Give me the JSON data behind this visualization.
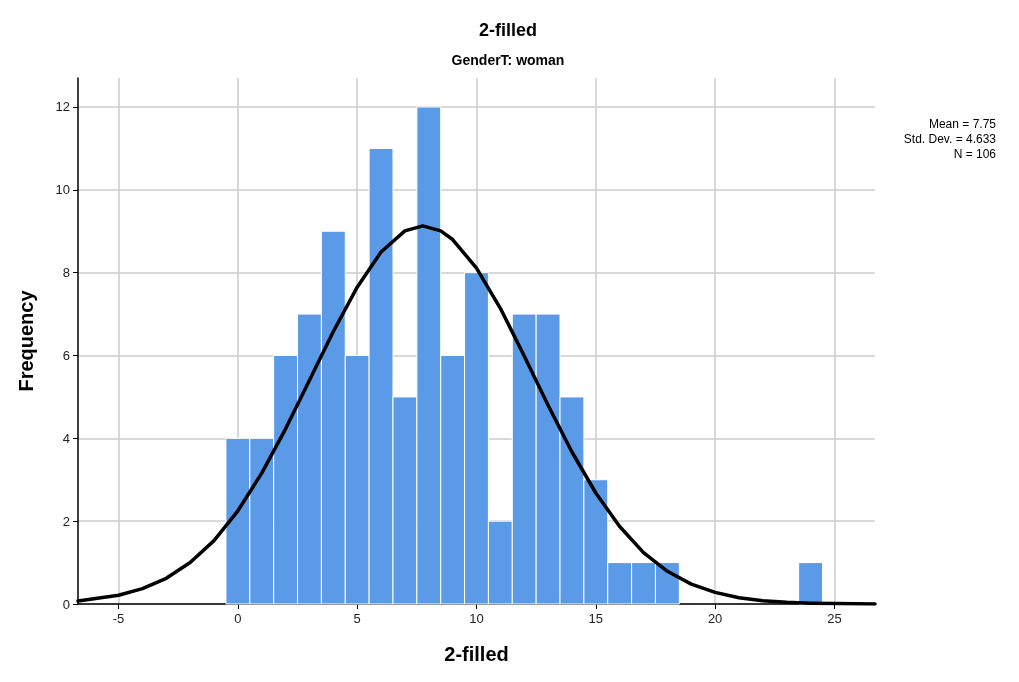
{
  "chart_data": {
    "type": "histogram",
    "title": "2-filled",
    "subtitle": "GenderT: woman",
    "xlabel": "2-filled",
    "ylabel": "Frequency",
    "bins": [
      -0.5,
      0.5,
      1.5,
      2.5,
      3.5,
      4.5,
      5.5,
      6.5,
      7.5,
      8.5,
      9.5,
      10.5,
      11.5,
      12.5,
      13.5,
      14.5,
      15.5,
      16.5,
      17.5,
      18.5,
      19.5,
      20.5,
      21.5,
      22.5,
      23.5,
      24.5
    ],
    "values": [
      4,
      4,
      6,
      7,
      9,
      6,
      11,
      5,
      12,
      6,
      8,
      2,
      7,
      7,
      5,
      3,
      1,
      1,
      1,
      0,
      0,
      0,
      0,
      0,
      1
    ],
    "color": "#5b9ae6",
    "series": [
      {
        "type": "line",
        "color": "#000000",
        "x": [
          -6.7,
          -5,
          -4,
          -3,
          -2,
          -1,
          0,
          1,
          2,
          3,
          4,
          5,
          6,
          7,
          7.75,
          8.5,
          9,
          10,
          11,
          12,
          13,
          14,
          15,
          16,
          17,
          18,
          19,
          20,
          21,
          22,
          23,
          24,
          25,
          26.7
        ],
        "values": [
          0.07,
          0.21,
          0.37,
          0.62,
          1.0,
          1.53,
          2.25,
          3.16,
          4.23,
          5.4,
          6.58,
          7.65,
          8.5,
          9.01,
          9.13,
          9.01,
          8.8,
          8.11,
          7.14,
          5.99,
          4.8,
          3.67,
          2.68,
          1.87,
          1.24,
          0.79,
          0.48,
          0.28,
          0.15,
          0.08,
          0.04,
          0.02,
          0.01,
          0.0
        ]
      }
    ],
    "xlim": [
      -6.7,
      26.7
    ],
    "xticks": [
      -5,
      0,
      5,
      10,
      15,
      20,
      25
    ],
    "ylim": [
      0,
      12.7
    ],
    "yticks": [
      0,
      2,
      4,
      6,
      8,
      10,
      12
    ],
    "grid": true,
    "marker": "none",
    "line_style": "solid",
    "annotations": [
      "Mean = 7.75",
      "Std. Dev. = 4.633",
      "N = 106"
    ]
  }
}
